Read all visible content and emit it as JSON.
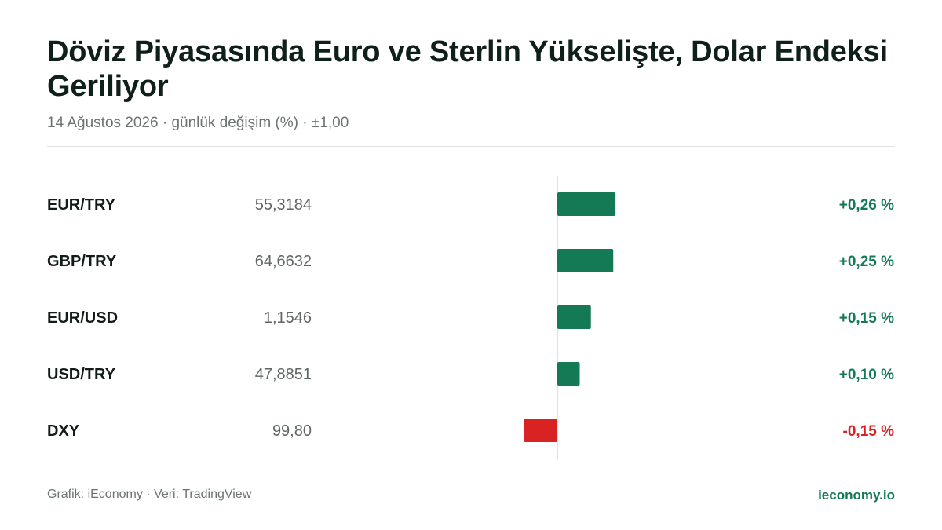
{
  "header": {
    "title": "Döviz Piyasasında Euro ve Sterlin Yükselişte, Dolar Endeksi Geriliyor",
    "subtitle": "14 Ağustos 2026 · günlük değişim (%) · ±1,00"
  },
  "footer": {
    "source": "Grafik: iEconomy · Veri: TradingView",
    "brand": "ieconomy.io"
  },
  "colors": {
    "positive": "#137a55",
    "negative": "#d92323",
    "axis": "#d5d9d7"
  },
  "chart_data": {
    "type": "bar",
    "orientation": "horizontal",
    "xlim": [
      -1.0,
      1.0
    ],
    "categories": [
      "EUR/TRY",
      "GBP/TRY",
      "EUR/USD",
      "USD/TRY",
      "DXY"
    ],
    "prices": [
      "55,3184",
      "64,6632",
      "1,1546",
      "47,8851",
      "99,80"
    ],
    "values": [
      0.26,
      0.25,
      0.15,
      0.1,
      -0.15
    ],
    "value_labels": [
      "+0,26 %",
      "+0,25 %",
      "+0,15 %",
      "+0,10 %",
      "-0,15 %"
    ]
  }
}
